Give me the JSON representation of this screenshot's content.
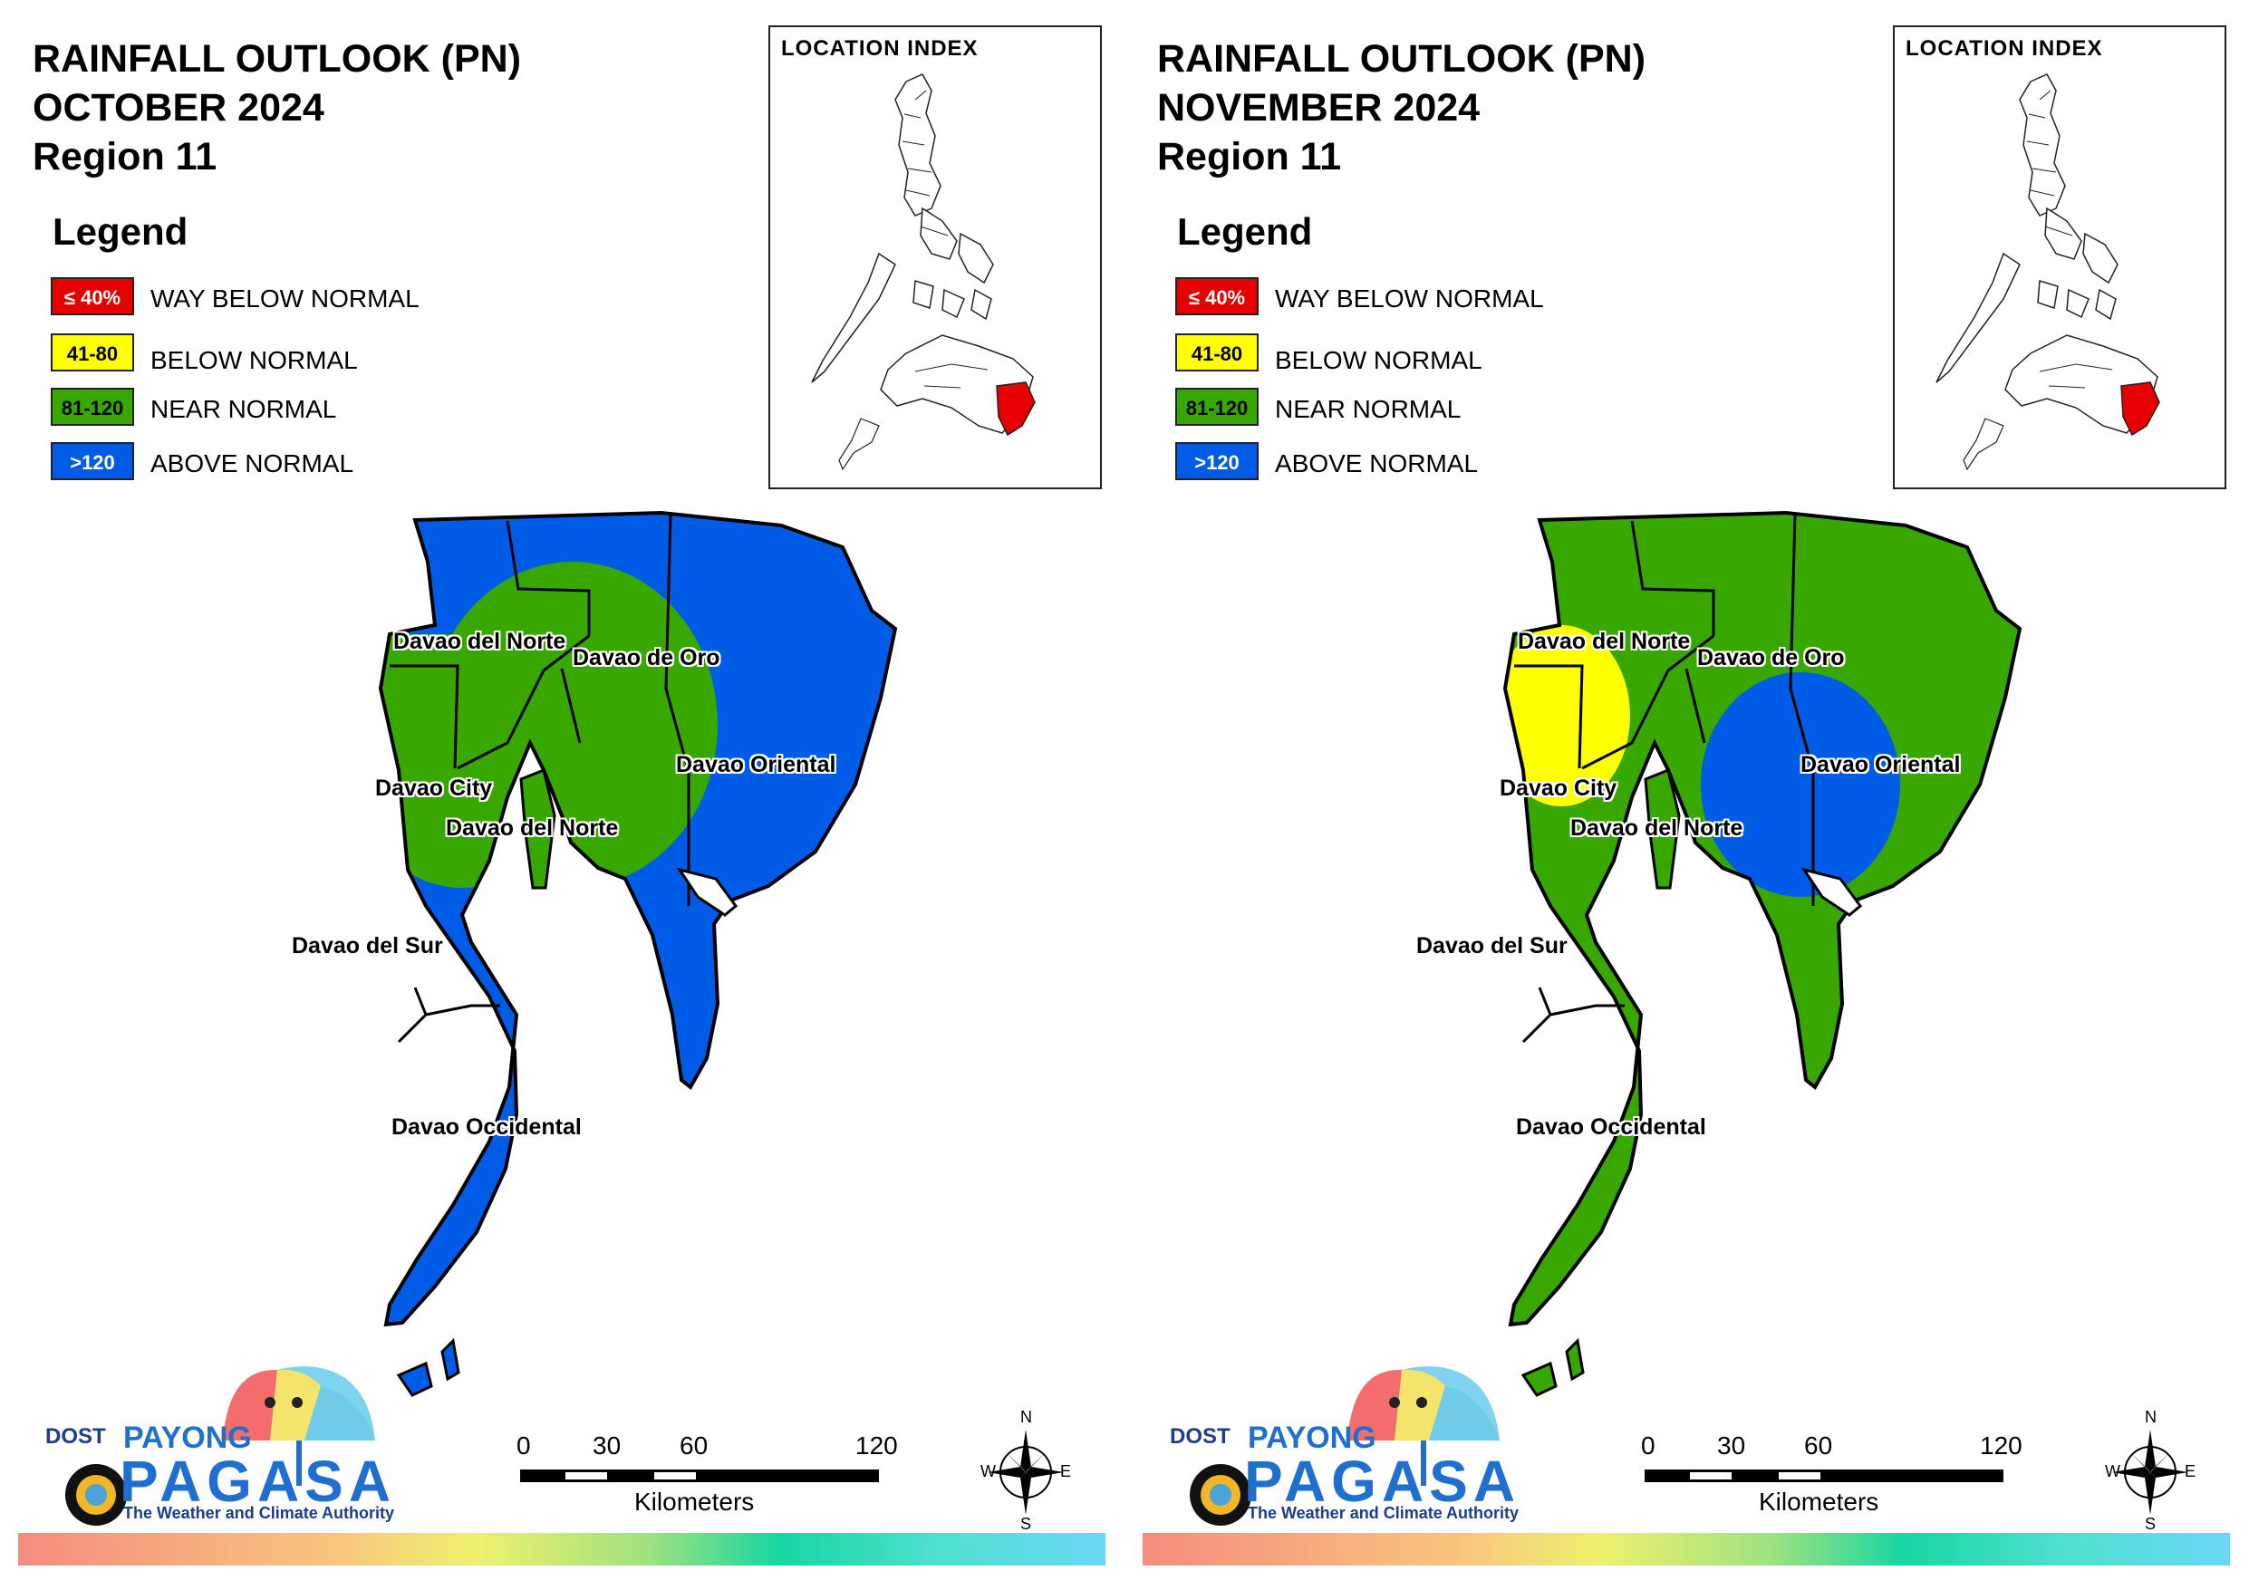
{
  "legend": {
    "title": "Legend",
    "items": [
      {
        "range": "≤ 40%",
        "label": "WAY BELOW NORMAL",
        "color": "#e60000"
      },
      {
        "range": "41-80",
        "label": "BELOW NORMAL",
        "color": "#ffff00"
      },
      {
        "range": "81-120",
        "label": "NEAR NORMAL",
        "color": "#38a800"
      },
      {
        "range": ">120",
        "label": "ABOVE NORMAL",
        "color": "#005ce6"
      }
    ]
  },
  "inset": {
    "title": "LOCATION INDEX",
    "highlight_color": "#e60000"
  },
  "scale_bar": {
    "ticks": [
      "0",
      "30",
      "60",
      "120"
    ],
    "unit": "Kilometers"
  },
  "compass": {
    "n": "N",
    "s": "S",
    "e": "E",
    "w": "W"
  },
  "logo": {
    "dost": "DOST",
    "payong": "PAYONG",
    "pagasa": "PAGASA",
    "tagline": "The Weather and Climate Authority"
  },
  "provinces": {
    "davao_del_norte_west": "Davao del Norte",
    "davao_de_oro": "Davao de Oro",
    "davao_oriental": "Davao Oriental",
    "davao_city": "Davao City",
    "davao_del_norte_south": "Davao del Norte",
    "davao_del_sur": "Davao del Sur",
    "davao_occidental": "Davao Occidental"
  },
  "maps": [
    {
      "title_line1": "RAINFALL OUTLOOK (PN)",
      "title_line2": "OCTOBER 2024",
      "title_line3": "Region 11",
      "base_category": "ABOVE NORMAL",
      "overlay_category": "NEAR NORMAL"
    },
    {
      "title_line1": "RAINFALL OUTLOOK (PN)",
      "title_line2": "NOVEMBER 2024",
      "title_line3": "Region 11",
      "base_category": "NEAR NORMAL",
      "overlay_categories": [
        "BELOW NORMAL",
        "ABOVE NORMAL"
      ]
    }
  ]
}
